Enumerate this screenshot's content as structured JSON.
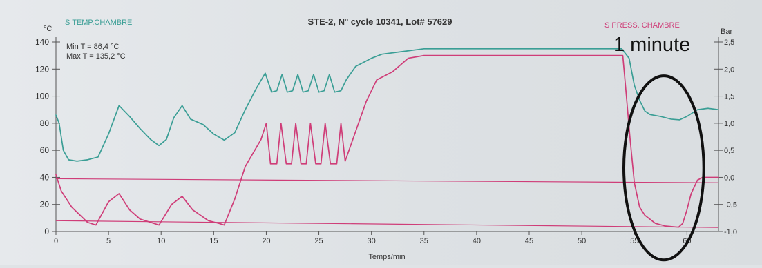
{
  "chart_data": {
    "type": "line",
    "title": "STE-2, N° cycle 10341, Lot# 57629",
    "xlabel": "Temps/min",
    "xlim": [
      0,
      63
    ],
    "x_ticks": [
      0,
      5,
      10,
      15,
      20,
      25,
      30,
      35,
      40,
      45,
      50,
      55,
      60
    ],
    "y_left": {
      "unit": "°C",
      "lim": [
        0,
        140
      ],
      "ticks": [
        0,
        20,
        40,
        60,
        80,
        100,
        120,
        140
      ]
    },
    "y_right": {
      "unit": "Bar",
      "lim": [
        -1.0,
        2.5
      ],
      "ticks": [
        -1.0,
        -0.5,
        0.0,
        0.5,
        1.0,
        1.5,
        2.0,
        2.5
      ],
      "tick_labels": [
        "-1,0",
        "-0,5",
        "0,0",
        "0,5",
        "1,0",
        "1,5",
        "2,0",
        "2,5"
      ]
    },
    "stats": {
      "min_t": "Min T = 86,4 °C",
      "max_t": "Max T = 135,2 °C"
    },
    "annotation": {
      "text": "1 minute",
      "ellipse_center_x": 57.8,
      "ellipse_center_y": 47,
      "ellipse_rx_min": 3.8,
      "ellipse_ry_degC": 68
    },
    "grid": false,
    "series": [
      {
        "name": "S TEMP.CHAMBRE",
        "axis": "left",
        "color": "#3a9e95",
        "points": [
          [
            0,
            86
          ],
          [
            0.3,
            80
          ],
          [
            0.7,
            60
          ],
          [
            1.2,
            53
          ],
          [
            2,
            52
          ],
          [
            3,
            53
          ],
          [
            4,
            55
          ],
          [
            5,
            72
          ],
          [
            6,
            93
          ],
          [
            7,
            85
          ],
          [
            8,
            76
          ],
          [
            9,
            68
          ],
          [
            9.8,
            63.5
          ],
          [
            10.5,
            68
          ],
          [
            11.2,
            84
          ],
          [
            12,
            93
          ],
          [
            12.8,
            83
          ],
          [
            14,
            79
          ],
          [
            15,
            72
          ],
          [
            16,
            67.5
          ],
          [
            17,
            73
          ],
          [
            18,
            90
          ],
          [
            19,
            105
          ],
          [
            19.9,
            117
          ],
          [
            20.5,
            103
          ],
          [
            21,
            104
          ],
          [
            21.5,
            116
          ],
          [
            22,
            103
          ],
          [
            22.5,
            104
          ],
          [
            23,
            116
          ],
          [
            23.5,
            103
          ],
          [
            24,
            104
          ],
          [
            24.5,
            116
          ],
          [
            25,
            103
          ],
          [
            25.5,
            104
          ],
          [
            26,
            116
          ],
          [
            26.5,
            103
          ],
          [
            27.1,
            104
          ],
          [
            27.6,
            112
          ],
          [
            28.5,
            122
          ],
          [
            30,
            128
          ],
          [
            31,
            131
          ],
          [
            33,
            133
          ],
          [
            35,
            135
          ],
          [
            40,
            135
          ],
          [
            45,
            135
          ],
          [
            50,
            135
          ],
          [
            53.8,
            135
          ],
          [
            54.5,
            128
          ],
          [
            55,
            108
          ],
          [
            55.5,
            97
          ],
          [
            56,
            89
          ],
          [
            56.5,
            86.4
          ],
          [
            57.5,
            85
          ],
          [
            58.5,
            83
          ],
          [
            59.3,
            82.5
          ],
          [
            60,
            85
          ],
          [
            61,
            90
          ],
          [
            62,
            91
          ],
          [
            63,
            90
          ]
        ]
      },
      {
        "name": "S PRESS. CHAMBRE",
        "axis": "right",
        "color": "#cf3d78",
        "points": [
          [
            0,
            0.05
          ],
          [
            0.5,
            -0.25
          ],
          [
            1.5,
            -0.55
          ],
          [
            3,
            -0.83
          ],
          [
            3.8,
            -0.88
          ],
          [
            5,
            -0.45
          ],
          [
            6,
            -0.3
          ],
          [
            7,
            -0.6
          ],
          [
            8,
            -0.77
          ],
          [
            9,
            -0.83
          ],
          [
            9.8,
            -0.88
          ],
          [
            11,
            -0.5
          ],
          [
            12,
            -0.35
          ],
          [
            13,
            -0.6
          ],
          [
            14.5,
            -0.8
          ],
          [
            15.5,
            -0.85
          ],
          [
            16,
            -0.88
          ],
          [
            17,
            -0.4
          ],
          [
            18,
            0.2
          ],
          [
            19.5,
            0.7
          ],
          [
            20,
            1.0
          ],
          [
            20.4,
            0.25
          ],
          [
            21,
            0.25
          ],
          [
            21.4,
            1.0
          ],
          [
            21.9,
            0.25
          ],
          [
            22.4,
            0.25
          ],
          [
            22.8,
            1.0
          ],
          [
            23.3,
            0.25
          ],
          [
            23.8,
            0.25
          ],
          [
            24.2,
            1.0
          ],
          [
            24.7,
            0.25
          ],
          [
            25.2,
            0.25
          ],
          [
            25.6,
            1.0
          ],
          [
            26.1,
            0.25
          ],
          [
            26.7,
            0.25
          ],
          [
            27.1,
            1.0
          ],
          [
            27.5,
            0.3
          ],
          [
            28.5,
            0.85
          ],
          [
            29.5,
            1.4
          ],
          [
            30.5,
            1.8
          ],
          [
            32,
            1.95
          ],
          [
            33.5,
            2.2
          ],
          [
            35,
            2.25
          ],
          [
            40,
            2.25
          ],
          [
            45,
            2.25
          ],
          [
            50,
            2.25
          ],
          [
            53.9,
            2.25
          ],
          [
            54.2,
            1.6
          ],
          [
            54.6,
            0.7
          ],
          [
            55,
            -0.1
          ],
          [
            55.5,
            -0.55
          ],
          [
            56,
            -0.7
          ],
          [
            57,
            -0.85
          ],
          [
            58,
            -0.9
          ],
          [
            59.2,
            -0.92
          ],
          [
            59.6,
            -0.85
          ],
          [
            60,
            -0.6
          ],
          [
            60.4,
            -0.3
          ],
          [
            61,
            -0.05
          ],
          [
            61.5,
            0.0
          ],
          [
            63,
            0.0
          ]
        ]
      }
    ],
    "reference_lines": [
      {
        "name": "zero-pressure-line",
        "axis": "left",
        "color": "#cf3d78",
        "from": [
          0,
          39
        ],
        "to": [
          63,
          36
        ]
      },
      {
        "name": "vacuum-pressure-line",
        "axis": "left",
        "color": "#cf3d78",
        "from": [
          0,
          8
        ],
        "to": [
          63,
          3
        ]
      }
    ]
  }
}
